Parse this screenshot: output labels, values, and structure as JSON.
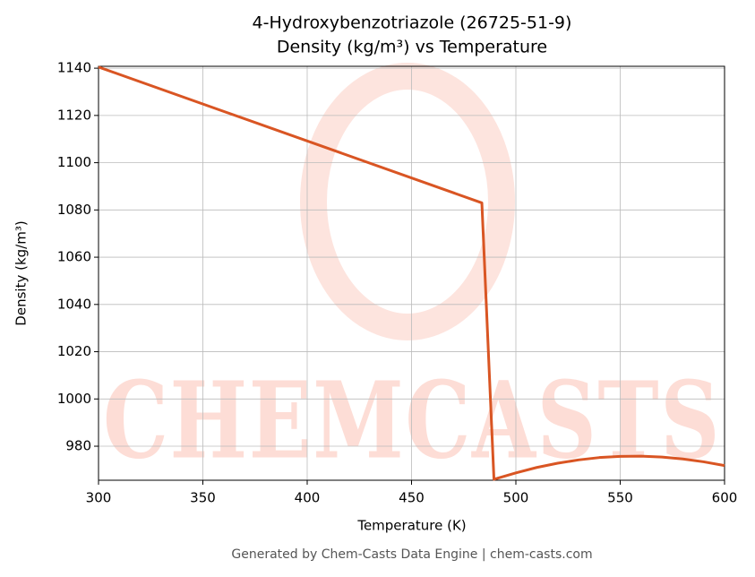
{
  "chart_data": {
    "type": "line",
    "title": "4-Hydroxybenzotriazole (26725-51-9)",
    "subtitle": "Density (kg/m³) vs Temperature",
    "x_label": "Temperature (K)",
    "y_label": "Density (kg/m³)",
    "footer": "Generated by Chem-Casts Data Engine | chem-casts.com",
    "watermark": "CHEMCASTS",
    "x": [
      300,
      483.7,
      489.5,
      500,
      510,
      520,
      530,
      540,
      550,
      560,
      570,
      580,
      590,
      600
    ],
    "series": [
      {
        "name": "Density",
        "color": "#d95523",
        "values": [
          1140.5,
          1083,
          966,
          968.7,
          971.0,
          972.8,
          974.2,
          975.2,
          975.7,
          975.8,
          975.4,
          974.6,
          973.4,
          971.8
        ]
      }
    ],
    "xlim": [
      300,
      600
    ],
    "ylim": [
      965.6,
      1140.8
    ],
    "xticks": [
      300,
      350,
      400,
      450,
      500,
      550,
      600
    ],
    "yticks": [
      980,
      1000,
      1020,
      1040,
      1060,
      1080,
      1100,
      1120,
      1140
    ],
    "grid": true
  }
}
